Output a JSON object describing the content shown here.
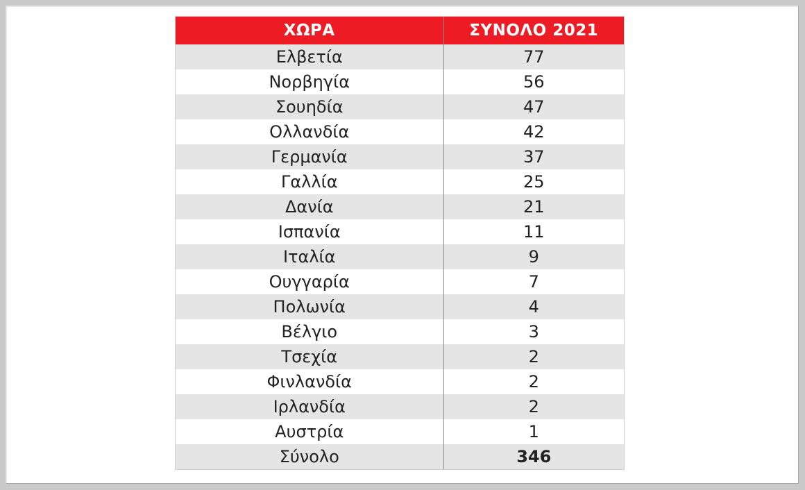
{
  "chart_data": {
    "type": "table",
    "columns": [
      "ΧΩΡΑ",
      "ΣΥΝΟΛΟ 2021"
    ],
    "rows": [
      {
        "country": "Ελβετία",
        "value": 77
      },
      {
        "country": "Νορβηγία",
        "value": 56
      },
      {
        "country": "Σουηδία",
        "value": 47
      },
      {
        "country": "Ολλανδία",
        "value": 42
      },
      {
        "country": "Γερμανία",
        "value": 37
      },
      {
        "country": "Γαλλία",
        "value": 25
      },
      {
        "country": "Δανία",
        "value": 21
      },
      {
        "country": "Ισπανία",
        "value": 11
      },
      {
        "country": "Ιταλία",
        "value": 9
      },
      {
        "country": "Ουγγαρία",
        "value": 7
      },
      {
        "country": "Πολωνία",
        "value": 4
      },
      {
        "country": "Βέλγιο",
        "value": 3
      },
      {
        "country": "Τσεχία",
        "value": 2
      },
      {
        "country": "Φινλανδία",
        "value": 2
      },
      {
        "country": "Ιρλανδία",
        "value": 2
      },
      {
        "country": "Αυστρία",
        "value": 1
      }
    ],
    "total": {
      "label": "Σύνολο",
      "value": 346
    },
    "colors": {
      "header_background": "#ed1c24",
      "header_text": "#ffffff",
      "stripe": "#e5e5e6"
    }
  }
}
